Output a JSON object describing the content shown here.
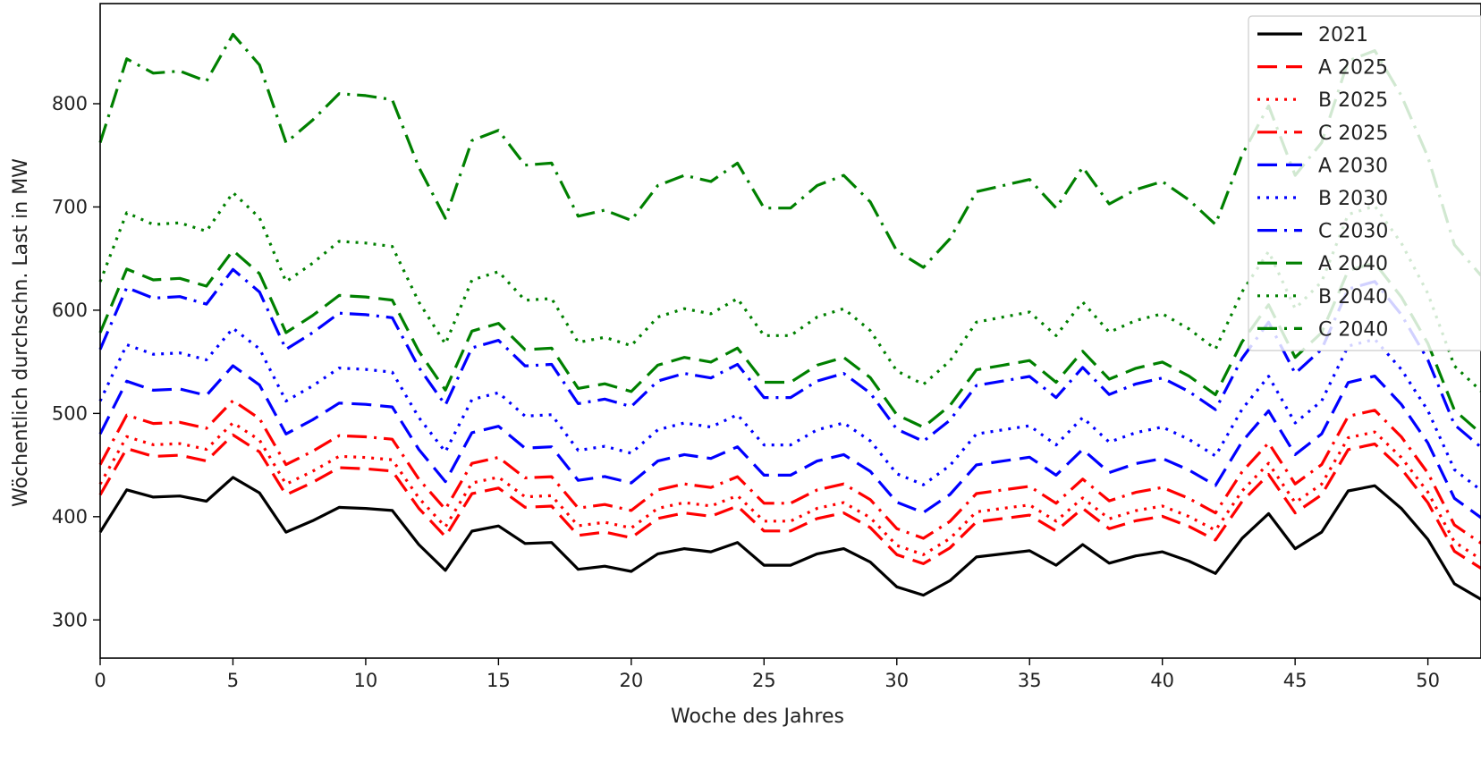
{
  "chart_data": {
    "type": "line",
    "xlabel": "Woche des Jahres",
    "ylabel": "Wöchentlich durchschn. Last in MW",
    "xlim": [
      0,
      52
    ],
    "ylim": [
      263,
      897
    ],
    "xticks": [
      "0",
      "5",
      "10",
      "15",
      "20",
      "25",
      "30",
      "35",
      "40",
      "45",
      "50"
    ],
    "yticks": [
      "300",
      "400",
      "500",
      "600",
      "700",
      "800"
    ],
    "grid": false,
    "legend_position": "top-right",
    "x": [
      0,
      1,
      2,
      3,
      4,
      5,
      6,
      7,
      8,
      9,
      10,
      11,
      12,
      13,
      14,
      15,
      16,
      17,
      18,
      19,
      20,
      21,
      22,
      23,
      24,
      25,
      26,
      27,
      28,
      29,
      30,
      31,
      32,
      33,
      34,
      35,
      36,
      37,
      38,
      39,
      40,
      41,
      42,
      43,
      44,
      45,
      46,
      47,
      48,
      49,
      50,
      51,
      52
    ],
    "base_2021": [
      385,
      426,
      419,
      420,
      415,
      438,
      423,
      385,
      396,
      409,
      408,
      406,
      373,
      348,
      386,
      391,
      374,
      375,
      349,
      352,
      347,
      364,
      369,
      366,
      375,
      353,
      353,
      364,
      369,
      356,
      332,
      324,
      338,
      361,
      364,
      367,
      353,
      373,
      355,
      362,
      366,
      357,
      345,
      379,
      403,
      369,
      385,
      425,
      430,
      408,
      378,
      335,
      320
    ],
    "series": [
      {
        "name": "2021",
        "color": "#000000",
        "dash": "solid",
        "factor": 1.0,
        "offset": 0
      },
      {
        "name": "A 2025",
        "color": "#ff0000",
        "dash": "dashed",
        "factor": 1.094,
        "offset": 0
      },
      {
        "name": "B 2025",
        "color": "#ff0000",
        "dash": "dotted",
        "factor": 1.121,
        "offset": 0
      },
      {
        "name": "C 2025",
        "color": "#ff0000",
        "dash": "dashdot",
        "factor": 1.17,
        "offset": 0
      },
      {
        "name": "A 2030",
        "color": "#0000ff",
        "dash": "dashed",
        "factor": 1.247,
        "offset": 0
      },
      {
        "name": "B 2030",
        "color": "#0000ff",
        "dash": "dotted",
        "factor": 1.33,
        "offset": 0
      },
      {
        "name": "C 2030",
        "color": "#0000ff",
        "dash": "dashdot",
        "factor": 1.46,
        "offset": 0
      },
      {
        "name": "A 2040",
        "color": "#008000",
        "dash": "dashed",
        "factor": 1.502,
        "offset": 0
      },
      {
        "name": "B 2040",
        "color": "#008000",
        "dash": "dotted",
        "factor": 1.63,
        "offset": 0
      },
      {
        "name": "C 2040",
        "color": "#008000",
        "dash": "dashdot",
        "factor": 1.98,
        "offset": 0
      }
    ]
  }
}
